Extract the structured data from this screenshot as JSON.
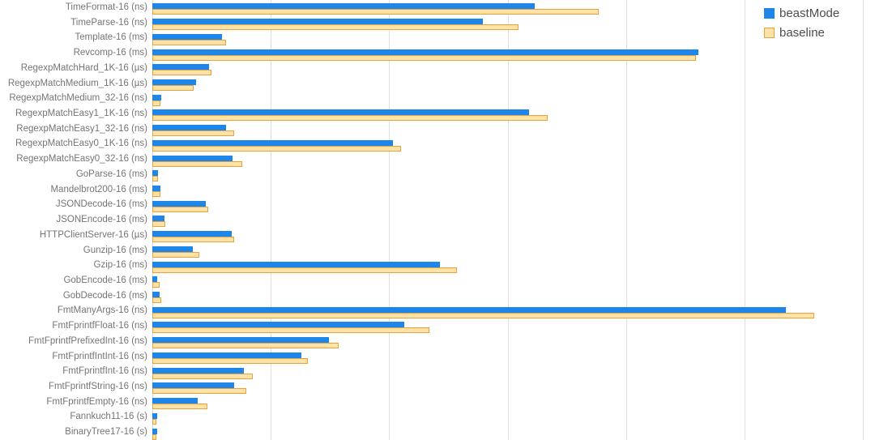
{
  "chart_data": {
    "type": "bar",
    "orientation": "horizontal",
    "title": "",
    "xlabel": "",
    "ylabel": "",
    "grid": true,
    "background_color": "#FFFFFF",
    "gridline_color": "#E0E0E0",
    "category_label_color": "#757575",
    "legend_position": "top-right",
    "x_axis": {
      "tick_labels_visible": false,
      "gridline_interval": 100,
      "visible_max": 610,
      "gridline_count": 7
    },
    "categories": [
      "TimeFormat-16 (ns)",
      "TimeParse-16 (ns)",
      "Template-16 (ms)",
      "Revcomp-16 (ms)",
      "RegexpMatchHard_1K-16 (µs)",
      "RegexpMatchMedium_1K-16 (µs)",
      "RegexpMatchMedium_32-16 (ns)",
      "RegexpMatchEasy1_1K-16 (ns)",
      "RegexpMatchEasy1_32-16 (ns)",
      "RegexpMatchEasy0_1K-16 (ns)",
      "RegexpMatchEasy0_32-16 (ns)",
      "GoParse-16 (ms)",
      "Mandelbrot200-16 (ms)",
      "JSONDecode-16 (ms)",
      "JSONEncode-16 (ms)",
      "HTTPClientServer-16 (µs)",
      "Gunzip-16 (ms)",
      "Gzip-16 (ms)",
      "GobEncode-16 (ms)",
      "GobDecode-16 (ms)",
      "FmtManyArgs-16 (ns)",
      "FmtFprintfFloat-16 (ns)",
      "FmtFprintfPrefixedInt-16 (ns)",
      "FmtFprintfIntInt-16 (ns)",
      "FmtFprintfInt-16 (ns)",
      "FmtFprintfString-16 (ns)",
      "FmtFprintfEmpty-16 (ns)",
      "Fannkuch11-16 (s)",
      "BinaryTree17-16 (s)"
    ],
    "series": [
      {
        "name": "beastMode",
        "color": "#1E86E8",
        "values": [
          323,
          279,
          59,
          461,
          48,
          37,
          7.3,
          318,
          62,
          203,
          68,
          5,
          6.8,
          45,
          10,
          67,
          34,
          243,
          4,
          6.4,
          535,
          213,
          149,
          126,
          77,
          69,
          38,
          4.4,
          4.4
        ]
      },
      {
        "name": "baseline",
        "fill_color": "#FFE3A6",
        "border_color": "#E8A13F",
        "values": [
          377,
          309,
          62,
          459,
          50,
          35,
          7,
          334,
          69,
          210,
          76,
          4.6,
          6.6,
          47.5,
          11,
          69,
          39.4,
          257,
          6.2,
          7.5,
          559,
          234,
          157,
          131,
          85,
          79,
          46.5,
          3.6,
          3.2
        ]
      }
    ]
  }
}
